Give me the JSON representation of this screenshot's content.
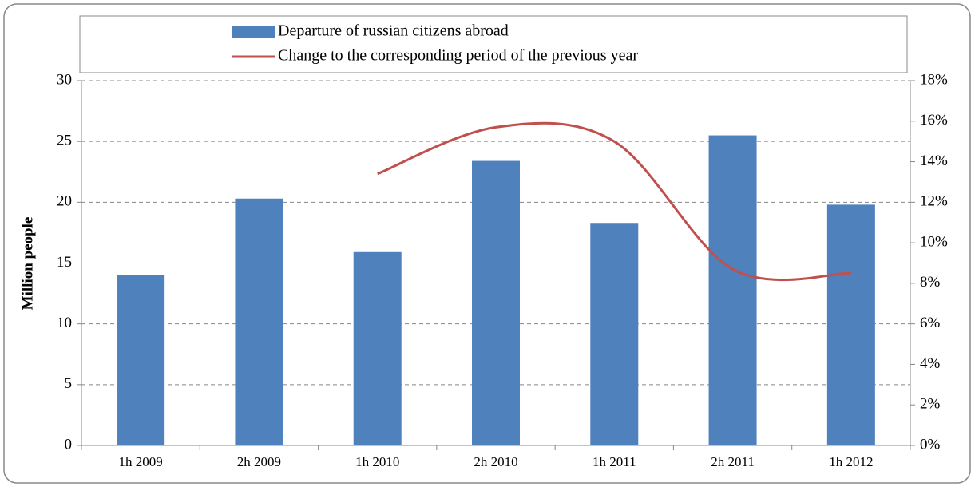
{
  "chart_data": {
    "type": "bar-line",
    "y_label": "Million people",
    "categories": [
      "1h 2009",
      "2h 2009",
      "1h 2010",
      "2h 2010",
      "1h 2011",
      "2h 2011",
      "1h 2012"
    ],
    "series": [
      {
        "name": "Departure of russian citizens abroad",
        "type": "bar",
        "color": "#4f81bd",
        "values": [
          14.0,
          20.3,
          15.9,
          23.4,
          18.3,
          25.5,
          19.8
        ]
      },
      {
        "name": "Change to the corresponding period of the previous year",
        "type": "line",
        "color": "#c0504d",
        "axis": "y2",
        "smooth": true,
        "values": [
          null,
          null,
          13.4,
          15.7,
          15.0,
          8.7,
          8.5
        ]
      }
    ],
    "ylim": [
      0,
      30
    ],
    "yticks": [
      0,
      5,
      10,
      15,
      20,
      25,
      30
    ],
    "y2lim": [
      0,
      18
    ],
    "y2ticks": [
      {
        "value": 0,
        "label": "0%"
      },
      {
        "value": 2,
        "label": "2%"
      },
      {
        "value": 4,
        "label": "4%"
      },
      {
        "value": 6,
        "label": "6%"
      },
      {
        "value": 8,
        "label": "8%"
      },
      {
        "value": 10,
        "label": "10%"
      },
      {
        "value": 12,
        "label": "12%"
      },
      {
        "value": 14,
        "label": "14%"
      },
      {
        "value": 16,
        "label": "16%"
      },
      {
        "value": 18,
        "label": "18%"
      }
    ],
    "grid": true,
    "legend": "top"
  }
}
